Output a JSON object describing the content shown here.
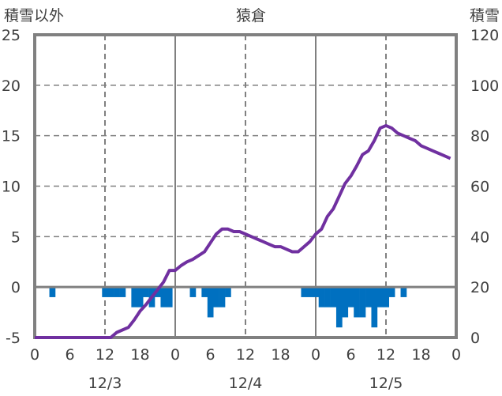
{
  "chart_data": {
    "type": "bar+line",
    "title": "猿倉",
    "ylabel_left": "積雪以外",
    "ylabel_right": "積雪",
    "left_axis": {
      "range": [
        -5,
        25
      ],
      "ticks": [
        -5,
        0,
        5,
        10,
        15,
        20,
        25
      ]
    },
    "right_axis": {
      "range": [
        0,
        120
      ],
      "ticks": [
        0,
        20,
        40,
        60,
        80,
        100,
        120
      ]
    },
    "x_range_hours": [
      0,
      72
    ],
    "x_tick_labels": [
      "0",
      "6",
      "12",
      "18",
      "0",
      "6",
      "12",
      "18",
      "0",
      "6",
      "12",
      "18",
      "0"
    ],
    "day_labels": [
      "12/3",
      "12/4",
      "12/5"
    ],
    "grid": true,
    "colors": {
      "bars": "#0070C0",
      "line": "#7030A0",
      "grid": "#808080",
      "axis": "#808080"
    },
    "series": [
      {
        "name": "積雪以外",
        "type": "bar",
        "axis": "left",
        "values": [
          0,
          0,
          0,
          -1,
          0,
          0,
          0,
          0,
          0,
          0,
          0,
          0,
          -1,
          -1,
          -1,
          -1,
          0,
          -2,
          -2,
          -1,
          -2,
          -1,
          -2,
          -2,
          0,
          0,
          0,
          -1,
          0,
          -1,
          -3,
          -2,
          -2,
          -1,
          0,
          0,
          0,
          0,
          0,
          0,
          0,
          0,
          0,
          0,
          0,
          0,
          -1,
          -1,
          -1,
          -2,
          -2,
          -2,
          -4,
          -3,
          -2,
          -3,
          -3,
          -2,
          -4,
          -2,
          -2,
          -1,
          0,
          -1,
          0,
          0,
          0,
          0,
          0,
          0,
          0,
          0
        ]
      },
      {
        "name": "積雪",
        "type": "line",
        "axis": "right",
        "values": [
          0,
          0,
          0,
          0,
          0,
          0,
          0,
          0,
          0,
          0,
          0,
          0,
          0,
          0,
          2,
          3,
          4,
          7,
          10.5,
          13,
          16,
          19,
          22,
          26.6,
          26.6,
          28.5,
          30,
          31,
          32.5,
          34,
          37.5,
          41,
          43,
          43,
          42,
          42,
          41,
          40,
          39,
          38,
          37,
          36,
          36,
          35,
          34,
          34,
          36,
          38,
          41,
          43,
          48,
          51,
          56,
          61,
          64,
          68,
          72.5,
          74,
          78,
          83,
          84,
          83,
          81,
          80,
          79,
          78,
          76,
          75,
          74,
          73,
          72,
          71
        ]
      }
    ]
  }
}
